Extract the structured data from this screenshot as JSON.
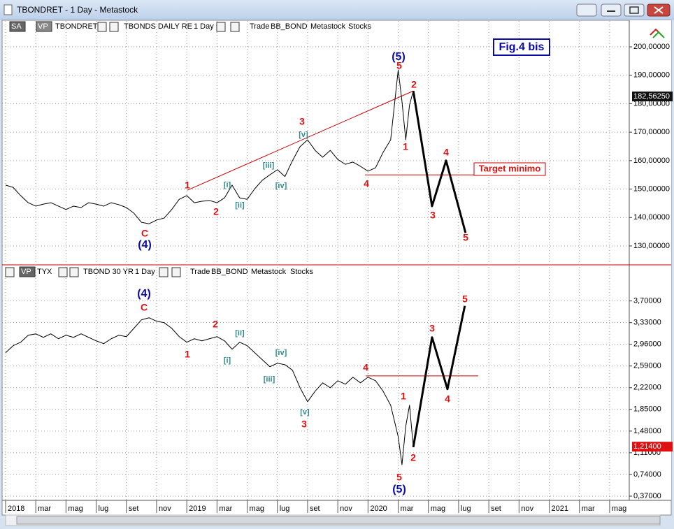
{
  "window": {
    "title": "TBONDRET - 1 Day - Metastock"
  },
  "chart_data": [
    {
      "type": "line",
      "title": "Fig.4 bis",
      "target_label": "Target minimo",
      "header": [
        "SA",
        "VP",
        "TBONDS DAILY RE",
        "1 Day",
        "Trade",
        "BB_BOND",
        "Metastock",
        "Stocks"
      ],
      "xlim": [
        -0.23,
        41.3
      ],
      "ylim": [
        123.6,
        209.1
      ],
      "yticks": [
        {
          "value": 130,
          "label": "130,00000"
        },
        {
          "value": 140,
          "label": "140,00000"
        },
        {
          "value": 150,
          "label": "150,00000"
        },
        {
          "value": 160,
          "label": "160,00000"
        },
        {
          "value": 170,
          "label": "170,00000"
        },
        {
          "value": 180,
          "label": "180,00000"
        },
        {
          "value": 190,
          "label": "190,00000"
        },
        {
          "value": 200,
          "label": "200,00000"
        }
      ],
      "grid": true,
      "series": [
        {
          "name": "TBONDRET",
          "color": "#000000",
          "x": [
            0,
            0.5,
            1,
            1.5,
            2,
            2.5,
            3,
            3.5,
            4,
            4.5,
            5,
            5.5,
            6,
            6.5,
            7,
            7.5,
            8,
            8.5,
            9,
            9.5,
            10,
            10.5,
            11,
            11.5,
            12,
            12.5,
            13,
            13.5,
            14,
            14.5,
            15,
            15.5,
            16,
            16.5,
            17,
            17.5,
            18,
            18.5,
            19,
            19.5,
            20,
            20.5,
            21,
            21.5,
            22,
            22.5,
            23,
            23.5,
            24,
            24.5,
            25,
            25.5,
            26,
            26.25,
            26.5,
            26.75,
            27
          ],
          "values": [
            151.4,
            150.6,
            147.7,
            145.2,
            144,
            144.7,
            145.2,
            144,
            142.8,
            144,
            143.5,
            145.2,
            144.7,
            144,
            145.2,
            144.5,
            143.5,
            141.5,
            138.3,
            137.8,
            139.1,
            139.8,
            142.8,
            146.4,
            147.7,
            145.2,
            145.7,
            146,
            145.2,
            146.9,
            151.4,
            146.9,
            146.4,
            150.1,
            153.1,
            155,
            156.8,
            154.4,
            160,
            164.9,
            167.3,
            163.6,
            161.2,
            163.6,
            160.4,
            158.7,
            159.5,
            158,
            156.3,
            157.5,
            162.9,
            167.3,
            191.9,
            180.8,
            167.3,
            179.6,
            184.5
          ]
        },
        {
          "color": "#000000",
          "line_width": 3,
          "x": [
            27,
            28.24,
            29.17,
            30.46
          ],
          "values": [
            184.5,
            144,
            160,
            134.6
          ]
        }
      ],
      "lines": [
        {
          "color": "#cc0000",
          "x": [
            12.04,
            27
          ],
          "values": [
            149.6,
            184.5
          ]
        },
        {
          "color": "#cc0000",
          "x": [
            23.8,
            31.8
          ],
          "values": [
            155,
            155
          ]
        }
      ],
      "last_price": {
        "value": 182.5625,
        "label": "182,56250"
      },
      "annotations": [
        "(5)",
        "5",
        "2",
        "1",
        "3",
        "[v]",
        "[iii]",
        "[iv]",
        "[i]",
        "[ii]",
        "1",
        "2",
        "C",
        "(4)",
        "4",
        "4",
        "3",
        "5"
      ]
    },
    {
      "type": "line",
      "header": [
        "VP",
        "TBOND 30 YR",
        "1 Day",
        "Trade",
        "BB_BOND",
        "Metastock",
        "Stocks"
      ],
      "xlim": [
        -0.23,
        41.3
      ],
      "ylim": [
        0.31,
        4.28
      ],
      "xticks": [
        {
          "value": 0,
          "label": "2018"
        },
        {
          "value": 2,
          "label": "mar"
        },
        {
          "value": 4,
          "label": "mag"
        },
        {
          "value": 6,
          "label": "lug"
        },
        {
          "value": 8,
          "label": "set"
        },
        {
          "value": 10,
          "label": "nov"
        },
        {
          "value": 12,
          "label": "2019"
        },
        {
          "value": 14,
          "label": "mar"
        },
        {
          "value": 16,
          "label": "mag"
        },
        {
          "value": 18,
          "label": "lug"
        },
        {
          "value": 20,
          "label": "set"
        },
        {
          "value": 22,
          "label": "nov"
        },
        {
          "value": 24,
          "label": "2020"
        },
        {
          "value": 26,
          "label": "mar"
        },
        {
          "value": 28,
          "label": "mag"
        },
        {
          "value": 30,
          "label": "lug"
        },
        {
          "value": 32,
          "label": "set"
        },
        {
          "value": 34,
          "label": "nov"
        },
        {
          "value": 36,
          "label": "2021"
        },
        {
          "value": 38,
          "label": "mar"
        },
        {
          "value": 40,
          "label": "mag"
        }
      ],
      "yticks": [
        {
          "value": 0.37,
          "label": "0,37000"
        },
        {
          "value": 0.74,
          "label": "0,74000"
        },
        {
          "value": 1.11,
          "label": "1,11000"
        },
        {
          "value": 1.48,
          "label": "1,48000"
        },
        {
          "value": 1.85,
          "label": "1,85000"
        },
        {
          "value": 2.22,
          "label": "2,22000"
        },
        {
          "value": 2.59,
          "label": "2,59000"
        },
        {
          "value": 2.96,
          "label": "2,96000"
        },
        {
          "value": 3.33,
          "label": "3,33000"
        },
        {
          "value": 3.7,
          "label": "3,70000"
        }
      ],
      "grid": true,
      "series": [
        {
          "name": "TYX",
          "color": "#000000",
          "x": [
            0,
            0.5,
            1,
            1.5,
            2,
            2.5,
            3,
            3.5,
            4,
            4.5,
            5,
            5.5,
            6,
            6.5,
            7,
            7.5,
            8,
            8.5,
            9,
            9.5,
            10,
            10.5,
            11,
            11.5,
            12,
            12.5,
            13,
            13.5,
            14,
            14.5,
            15,
            15.5,
            16,
            16.5,
            17,
            17.5,
            18,
            18.5,
            19,
            19.5,
            20,
            20.5,
            21,
            21.5,
            22,
            22.5,
            23,
            23.5,
            24,
            24.5,
            25,
            25.5,
            26,
            26.25,
            26.5,
            26.75,
            27
          ],
          "values": [
            2.816,
            2.936,
            2.996,
            3.115,
            3.139,
            3.079,
            3.139,
            3.055,
            3.115,
            3.079,
            3.139,
            3.079,
            3.019,
            2.972,
            3.055,
            3.115,
            3.091,
            3.234,
            3.378,
            3.413,
            3.354,
            3.33,
            3.234,
            3.091,
            2.996,
            3.055,
            3.019,
            3.055,
            3.091,
            3.019,
            2.876,
            2.996,
            2.936,
            2.816,
            2.697,
            2.578,
            2.637,
            2.613,
            2.518,
            2.219,
            1.981,
            2.16,
            2.303,
            2.219,
            2.339,
            2.279,
            2.399,
            2.303,
            2.399,
            2.339,
            2.16,
            1.921,
            1.384,
            0.906,
            1.563,
            1.921,
            1.205
          ]
        },
        {
          "color": "#000000",
          "line_width": 3,
          "x": [
            27,
            28.24,
            29.26,
            30.41
          ],
          "values": [
            1.205,
            3.079,
            2.196,
            3.616
          ]
        }
      ],
      "lines": [
        {
          "color": "#cc0000",
          "x": [
            23.85,
            31.3
          ],
          "values": [
            2.422,
            2.422
          ]
        }
      ],
      "last_price": {
        "value": 1.214,
        "label": "1,21400"
      },
      "annotations": [
        "(4)",
        "C",
        "2",
        "[ii]",
        "1",
        "[i]",
        "[iv]",
        "[iii]",
        "[v]",
        "3",
        "4",
        "1",
        "2",
        "5",
        "(5)",
        "3",
        "4",
        "5"
      ]
    }
  ]
}
